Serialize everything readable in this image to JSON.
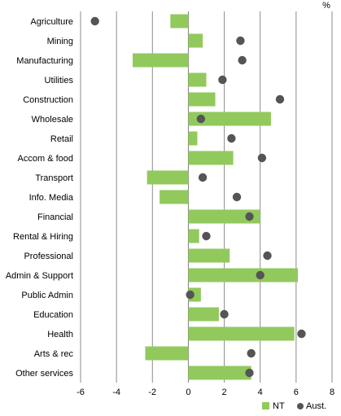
{
  "chart_data": {
    "type": "bar",
    "unit": "%",
    "categories": [
      "Agriculture",
      "Mining",
      "Manufacturing",
      "Utilities",
      "Construction",
      "Wholesale",
      "Retail",
      "Accom & food",
      "Transport",
      "Info. Media",
      "Financial",
      "Rental & Hiring",
      "Professional",
      "Admin & Support",
      "Public Admin",
      "Education",
      "Health",
      "Arts & rec",
      "Other services"
    ],
    "series": [
      {
        "name": "NT",
        "kind": "bar",
        "color": "#92c95c",
        "values": [
          -1.0,
          0.8,
          -3.1,
          1.0,
          1.5,
          4.6,
          0.5,
          2.5,
          -2.3,
          -1.6,
          4.0,
          0.6,
          2.3,
          6.1,
          0.7,
          1.7,
          5.9,
          -2.4,
          3.5
        ]
      },
      {
        "name": "Aust.",
        "kind": "dot",
        "color": "#555555",
        "values": [
          -5.2,
          2.9,
          3.0,
          1.9,
          5.1,
          0.7,
          2.4,
          4.1,
          0.8,
          2.7,
          3.4,
          1.0,
          4.4,
          4.0,
          0.1,
          2.0,
          6.3,
          3.5,
          3.4
        ]
      }
    ],
    "xlim": [
      -6,
      8
    ],
    "xticks": [
      -6,
      -4,
      -2,
      0,
      2,
      4,
      6,
      8
    ],
    "grid": true,
    "legend_position": "bottom-right"
  }
}
